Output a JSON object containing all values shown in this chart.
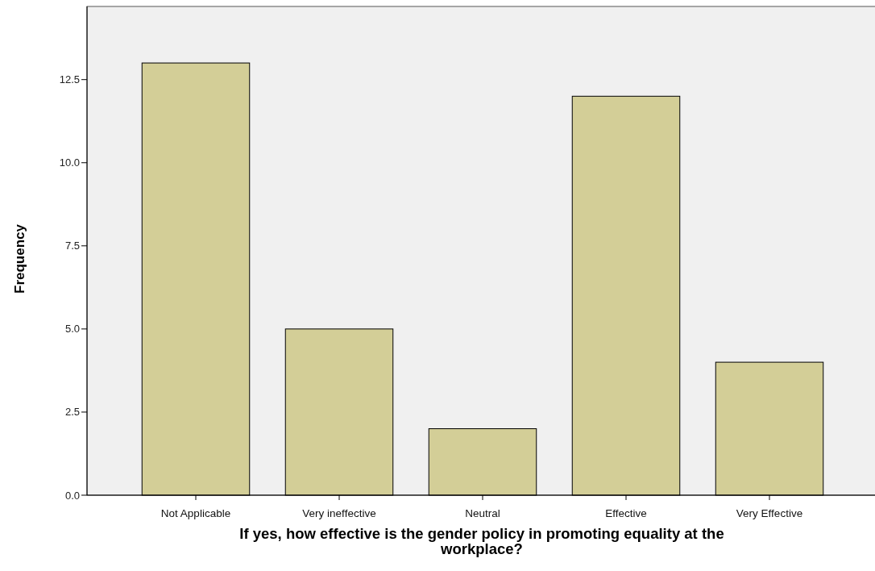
{
  "chart_data": {
    "type": "bar",
    "xlabel": "If yes, how effective is the gender policy in promoting equality at the workplace?",
    "ylabel": "Frequency",
    "categories": [
      "Not Applicable",
      "Very ineffective",
      "Neutral",
      "Effective",
      "Very Effective"
    ],
    "values": [
      13,
      5,
      2,
      12,
      4
    ],
    "color": "#d3ce97",
    "ylim": [
      0,
      14.7
    ],
    "yticks": [
      {
        "value": 0,
        "label": "0.0"
      },
      2.5,
      {
        "value": 5,
        "label": "5.0"
      },
      7.5,
      {
        "value": 10,
        "label": "10.0"
      },
      12.5
    ],
    "grid": false
  }
}
